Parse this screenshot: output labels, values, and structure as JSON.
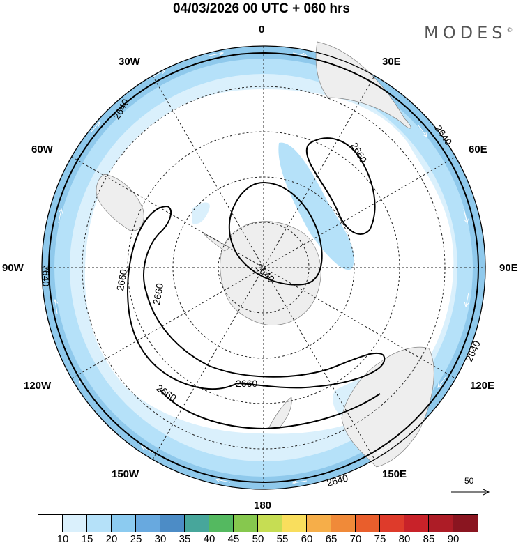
{
  "header": {
    "title": "04/03/2026  00 UTC  + 060 hrs",
    "brand": "MODES",
    "brand_mark": "©"
  },
  "map": {
    "longitude_labels": {
      "lon_0": "0",
      "lon_30e": "30E",
      "lon_60e": "60E",
      "lon_90e": "90E",
      "lon_120e": "120E",
      "lon_150e": "150E",
      "lon_180": "180",
      "lon_150w": "150W",
      "lon_120w": "120W",
      "lon_90w": "90W",
      "lon_60w": "60W",
      "lon_30w": "30W"
    },
    "contour_labels": {
      "c1": "2640",
      "c2": "2640",
      "c3": "2640",
      "c4": "2640",
      "c5": "2640",
      "c6": "2640",
      "c7": "2660",
      "c8": "2660",
      "c9": "2660",
      "c10": "2660",
      "c11": "2660"
    },
    "vector_reference": "50"
  },
  "colorbar": {
    "colors": [
      "#ffffff",
      "#daf0fc",
      "#b5e1f9",
      "#8ccbf0",
      "#68a9df",
      "#4c8cc6",
      "#47a69b",
      "#54b960",
      "#86c84e",
      "#c6dd53",
      "#f9de5d",
      "#f6ae49",
      "#f08a39",
      "#e95e2c",
      "#de3b2b",
      "#c82229",
      "#ad1c26",
      "#8a1520"
    ],
    "ticks": [
      "10",
      "15",
      "20",
      "25",
      "30",
      "35",
      "40",
      "45",
      "50",
      "55",
      "60",
      "65",
      "70",
      "75",
      "80",
      "85",
      "90"
    ]
  }
}
